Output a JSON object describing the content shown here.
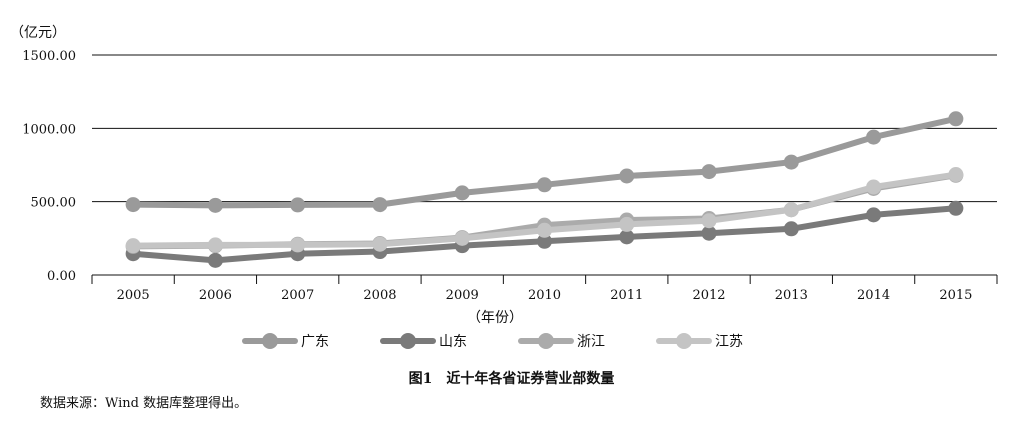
{
  "chart_data": {
    "type": "line",
    "ylabel": "（亿元）",
    "xlabel": "（年份）",
    "x": [
      "2005",
      "2006",
      "2007",
      "2008",
      "2009",
      "2010",
      "2011",
      "2012",
      "2013",
      "2014",
      "2015"
    ],
    "ylim": [
      0,
      1500
    ],
    "yticks": [
      "0.00",
      "500.00",
      "1000.00",
      "1500.00"
    ],
    "yticks_values": [
      0,
      500,
      1000,
      1500
    ],
    "grid": true,
    "legend_position": "bottom",
    "series": [
      {
        "name": "广东",
        "color": "#9a9a9a",
        "values": [
          480,
          475,
          478,
          480,
          560,
          615,
          675,
          705,
          770,
          940,
          1065
        ]
      },
      {
        "name": "山东",
        "color": "#7a7a7a",
        "values": [
          145,
          100,
          145,
          160,
          200,
          230,
          260,
          285,
          315,
          410,
          455
        ]
      },
      {
        "name": "浙江",
        "color": "#ababab",
        "values": [
          195,
          200,
          210,
          215,
          255,
          340,
          375,
          385,
          445,
          590,
          680
        ]
      },
      {
        "name": "江苏",
        "color": "#c4c4c4",
        "values": [
          200,
          205,
          205,
          210,
          250,
          305,
          345,
          370,
          445,
          600,
          685
        ]
      }
    ]
  },
  "caption": "图1　近十年各省证券营业部数量",
  "source": "数据来源：Wind 数据库整理得出。"
}
